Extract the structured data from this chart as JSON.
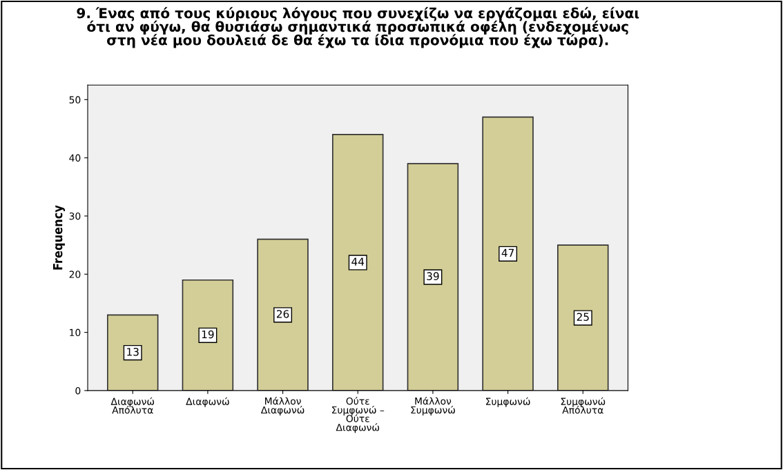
{
  "chart_data": {
    "type": "bar",
    "title": "9. Ένας από τους κύριους λόγους που συνεχίζω να εργάζομαι εδώ, είναι\nότι αν φύγω, θα θυσιάσω σημαντικά προσωπικά οφέλη (ενδεχομένως\nστη νέα μου δουλειά δε θα έχω τα ίδια προνόμια που έχω τώρα).",
    "ylabel": "Frequency",
    "categories": [
      "Διαφωνώ\nΑπόλυτα",
      "Διαφωνώ",
      "Μάλλον\nΔιαφωνώ",
      "Ούτε\nΣυμφωνώ –\nΟύτε\nΔιαφωνώ",
      "Μάλλον\nΣυμφωνώ",
      "Συμφωνώ",
      "Συμφωνώ\nΑπόλυτα"
    ],
    "values": [
      13,
      19,
      26,
      44,
      39,
      47,
      25
    ],
    "color": "#d3ce97",
    "ylim": [
      0,
      52.5
    ],
    "yticks": [
      0,
      10,
      20,
      30,
      40,
      50
    ],
    "grid": false,
    "data_labels": true
  }
}
